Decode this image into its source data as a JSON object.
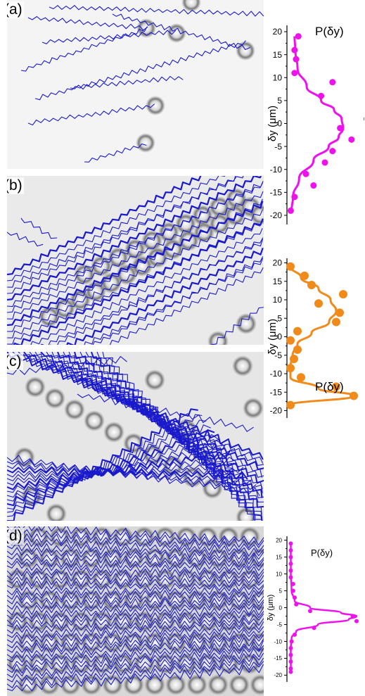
{
  "panels": [
    {
      "label": "(a)"
    },
    {
      "label": "(b)"
    },
    {
      "label": "(c)"
    },
    {
      "label": "(d)"
    }
  ],
  "colors": {
    "trajectory": "#1a1acc",
    "a": "#ee11ee",
    "b": "#f08a1a",
    "d": "#ee11ee"
  },
  "chart_data": [
    {
      "type": "scatter",
      "panel": "(a)",
      "title": "P(δy)",
      "ylabel": "δy (μm)",
      "ylim": [
        -22,
        22
      ],
      "yticks": [
        20,
        15,
        10,
        5,
        0,
        -5,
        -10,
        -15,
        -20
      ],
      "points_y": [
        19,
        16,
        14,
        11,
        9,
        6,
        1,
        -1,
        -3.5,
        -6,
        -8.5,
        -11,
        -13.5,
        -16,
        -19
      ],
      "points_p": [
        0.15,
        0.1,
        0.12,
        0.1,
        0.6,
        0.45,
        1.05,
        0.7,
        0.85,
        0.6,
        0.5,
        0.25,
        0.35,
        0.1,
        0.05
      ],
      "fit_y": [
        19,
        16,
        12,
        8,
        5,
        3,
        1,
        -1,
        -3,
        -5,
        -8,
        -12,
        -16,
        -19
      ],
      "fit_p": [
        0.1,
        0.11,
        0.14,
        0.26,
        0.45,
        0.62,
        0.72,
        0.74,
        0.68,
        0.55,
        0.35,
        0.16,
        0.08,
        0.06
      ]
    },
    {
      "type": "scatter",
      "panel": "(b)",
      "title": "P(δy)",
      "ylabel": "δy (μm)",
      "ylim": [
        -22,
        22
      ],
      "yticks": [
        20,
        15,
        10,
        5,
        0,
        -5,
        -10,
        -15,
        -20
      ],
      "points_y": [
        19,
        16.5,
        14,
        11.5,
        9,
        6.5,
        4,
        1.5,
        -1,
        -3.5,
        -6,
        -8.5,
        -11,
        -13.5,
        -16,
        -18.5
      ],
      "points_p": [
        0.05,
        0.25,
        0.35,
        0.8,
        0.45,
        0.75,
        0.7,
        0.15,
        0.05,
        0.15,
        0.1,
        0.05,
        0.2,
        0.7,
        0.95,
        0.05
      ],
      "fit_y": [
        19,
        16,
        13,
        10,
        7,
        4,
        1,
        -2,
        -5,
        -8,
        -11,
        -14,
        -16,
        -18.5
      ],
      "fit_p": [
        0.05,
        0.2,
        0.45,
        0.62,
        0.7,
        0.6,
        0.35,
        0.15,
        0.08,
        0.05,
        0.05,
        0.45,
        0.95,
        0.05
      ]
    },
    {
      "type": "scatter",
      "panel": "(d)",
      "title": "P(δy)",
      "ylabel": "δy (μm)",
      "ylim": [
        -22,
        22
      ],
      "yticks": [
        20,
        15,
        10,
        5,
        0,
        -5,
        -10,
        -15,
        -20
      ],
      "points_y": [
        19,
        17,
        15,
        13,
        11,
        9,
        7,
        5,
        3,
        1,
        -1,
        -2.5,
        -4,
        -6,
        -8,
        -10,
        -12,
        -14,
        -16,
        -18,
        -19
      ],
      "points_p": [
        0.05,
        0.05,
        0.05,
        0.05,
        0.05,
        0.05,
        0.08,
        0.08,
        0.1,
        0.12,
        0.3,
        0.85,
        0.9,
        0.35,
        0.1,
        0.06,
        0.05,
        0.05,
        0.05,
        0.05,
        0.05
      ],
      "fit_y": [
        19,
        10,
        5,
        2,
        0,
        -1.5,
        -2.5,
        -3.5,
        -5,
        -7,
        -9,
        -12,
        -19
      ],
      "fit_p": [
        0.05,
        0.05,
        0.06,
        0.1,
        0.3,
        0.7,
        0.9,
        0.8,
        0.4,
        0.12,
        0.06,
        0.05,
        0.05
      ]
    }
  ]
}
